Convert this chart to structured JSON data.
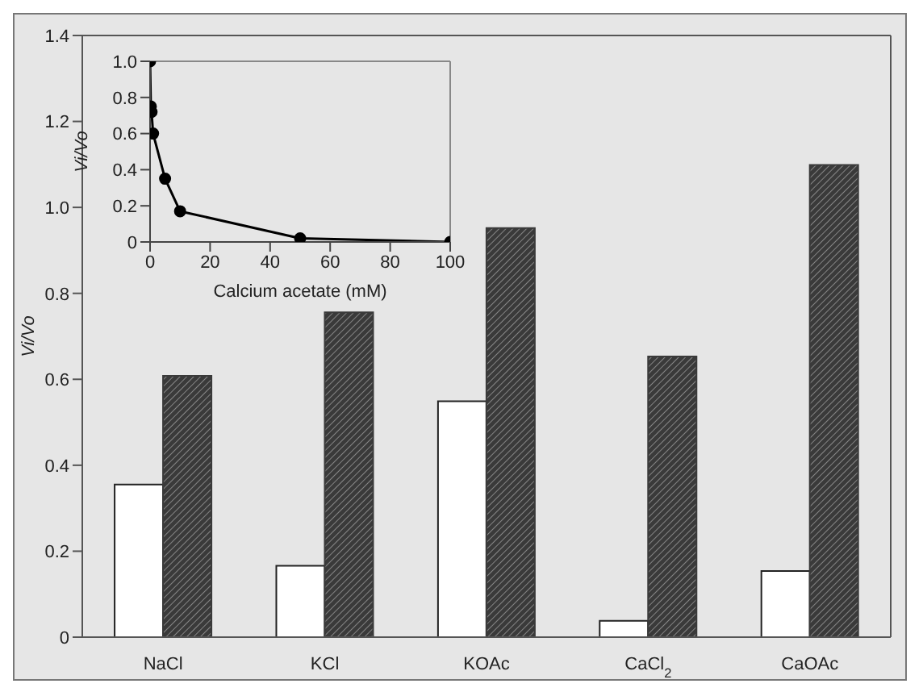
{
  "chart_data": [
    {
      "type": "bar",
      "ylabel": "Vi/Vo",
      "categories": [
        "NaCl",
        "KCl",
        "KOAc",
        "CaCl$_{2}$",
        "CaOAc"
      ],
      "series": [
        {
          "color": "#ffffff",
          "values": [
            0.355,
            0.166,
            0.549,
            0.038,
            0.154
          ]
        },
        {
          "color": "#3a3a3a",
          "values": [
            0.608,
            0.756,
            0.952,
            0.653,
            1.099
          ]
        }
      ],
      "ylim": [
        0,
        1.4
      ],
      "yticks": [
        0,
        0.2,
        0.4,
        0.6,
        0.8,
        {
          "value": 1,
          "label": "1.0"
        },
        1.2,
        1.4
      ],
      "grid": false
    },
    {
      "type": "line",
      "xlabel": "Calcium acetate (mM)",
      "ylabel": "Vi/Vo",
      "marker": "circle",
      "line_style": "solid",
      "series": [
        {
          "color": "#000000",
          "x": [
            0,
            0.25,
            0.5,
            1,
            5,
            10,
            50,
            100
          ],
          "values": [
            1,
            0.75,
            0.72,
            0.6,
            0.35,
            0.17,
            0.02,
            0
          ]
        }
      ],
      "xlim": [
        0,
        100
      ],
      "xticks": [
        0,
        20,
        40,
        60,
        80,
        100
      ],
      "ylim": [
        0,
        1
      ],
      "yticks": [
        0,
        0.2,
        0.4,
        0.6,
        0.8,
        {
          "value": 1,
          "label": "1.0"
        }
      ],
      "grid": false
    }
  ]
}
